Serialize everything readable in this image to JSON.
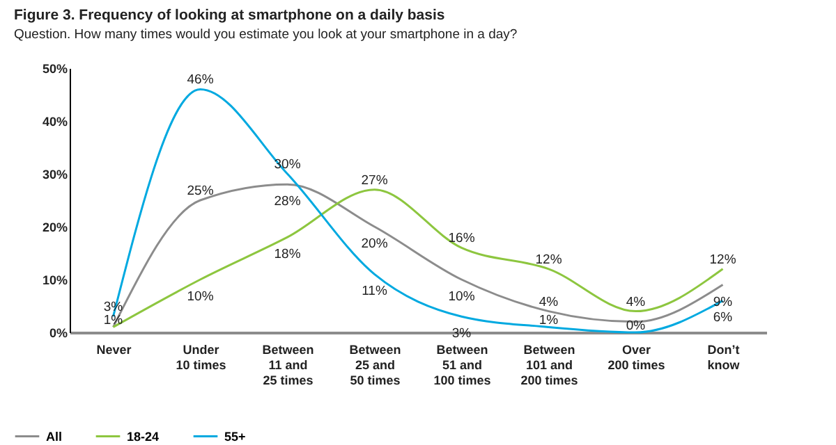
{
  "chart_data": {
    "type": "line",
    "title": "Figure 3. Frequency of looking at smartphone on a daily basis",
    "subtitle": "Question. How many times would you estimate you look at your smartphone in a day?",
    "categories": [
      "Never",
      "Under 10 times",
      "Between 11 and 25 times",
      "Between 25 and 50 times",
      "Between 51 and 100 times",
      "Between 101 and 200 times",
      "Over 200 times",
      "Don’t know"
    ],
    "series": [
      {
        "name": "All",
        "color": "#8c8c8c",
        "values": [
          1,
          25,
          28,
          20,
          10,
          4,
          2,
          9
        ],
        "value_labels": [
          "1%",
          "25%",
          "28%",
          "20%",
          "10%",
          "4%",
          null,
          "9%"
        ]
      },
      {
        "name": "18-24",
        "color": "#8dc63f",
        "values": [
          1,
          10,
          18,
          27,
          16,
          12,
          4,
          12
        ],
        "value_labels": [
          null,
          "10%",
          "18%",
          "27%",
          "16%",
          "12%",
          "4%",
          "12%"
        ]
      },
      {
        "name": "55+",
        "color": "#00a9e0",
        "values": [
          3,
          46,
          30,
          11,
          3,
          1,
          0,
          6
        ],
        "value_labels": [
          "3%",
          "46%",
          "30%",
          "11%",
          "3%",
          "1%",
          "0%",
          "6%"
        ]
      }
    ],
    "ylim": [
      0,
      50
    ],
    "yticks": [
      {
        "value": 0,
        "label": "0%"
      },
      {
        "value": 10,
        "label": "10%"
      },
      {
        "value": 20,
        "label": "20%"
      },
      {
        "value": 30,
        "label": "30%"
      },
      {
        "value": 40,
        "label": "40%"
      },
      {
        "value": 50,
        "label": "50%"
      }
    ],
    "grid": false,
    "legend": "bottom left",
    "marker": "none",
    "line_style": "solid"
  }
}
